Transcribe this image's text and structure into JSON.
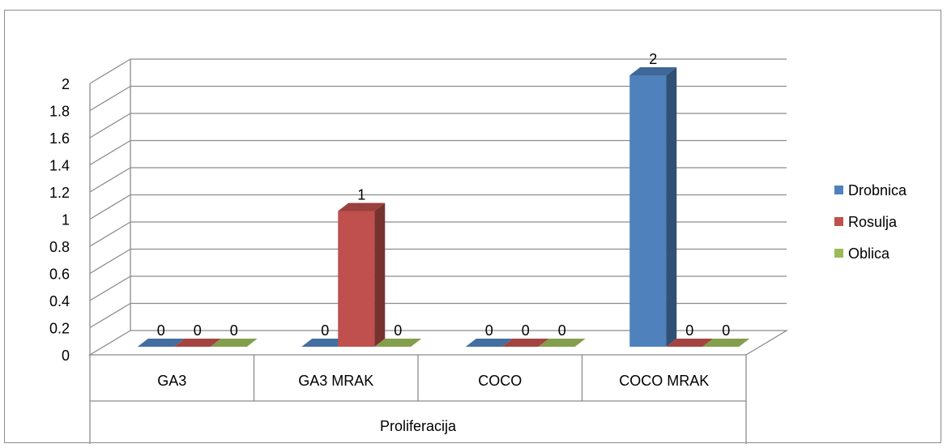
{
  "chart_data": {
    "type": "bar",
    "style": "3d-clustered-column",
    "title": "",
    "xlabel": "Proliferacija",
    "ylabel": "",
    "ylim": [
      0,
      2
    ],
    "yticks": [
      "0",
      "0.2",
      "0.4",
      "0.6",
      "0.8",
      "1",
      "1.2",
      "1.4",
      "1.6",
      "1.8",
      "2"
    ],
    "ytick_values": [
      0,
      0.2,
      0.4,
      0.6,
      0.8,
      1,
      1.2,
      1.4,
      1.6,
      1.8,
      2
    ],
    "categories": [
      "GA3",
      "GA3 MRAK",
      "COCO",
      "COCO MRAK"
    ],
    "series": [
      {
        "name": "Drobnica",
        "color": "#4f81bd",
        "values": [
          0,
          0,
          0,
          2
        ]
      },
      {
        "name": "Rosulja",
        "color": "#c0504d",
        "values": [
          0,
          1,
          0,
          0
        ]
      },
      {
        "name": "Oblica",
        "color": "#9bbb59",
        "values": [
          0,
          0,
          0,
          0
        ]
      }
    ],
    "data_labels": true,
    "grid": true,
    "legend_position": "right"
  }
}
